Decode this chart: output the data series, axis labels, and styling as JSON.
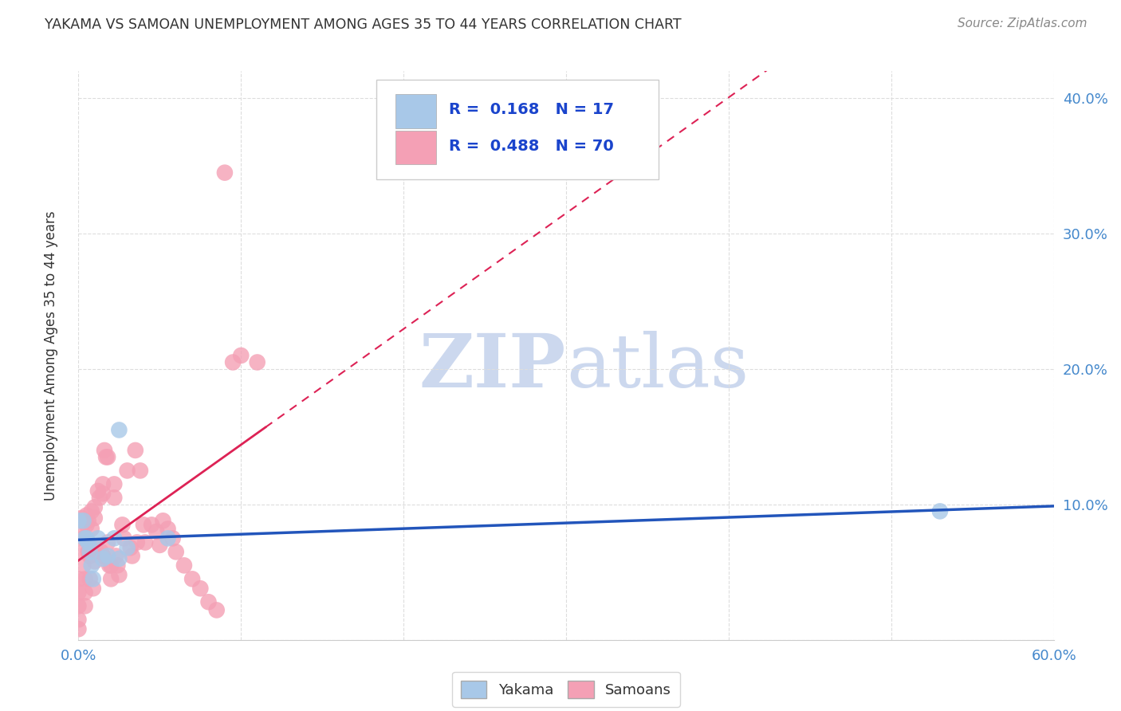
{
  "title": "YAKAMA VS SAMOAN UNEMPLOYMENT AMONG AGES 35 TO 44 YEARS CORRELATION CHART",
  "source_text": "Source: ZipAtlas.com",
  "ylabel": "Unemployment Among Ages 35 to 44 years",
  "xlim": [
    0.0,
    0.6
  ],
  "ylim": [
    0.0,
    0.42
  ],
  "x_ticks": [
    0.0,
    0.1,
    0.2,
    0.3,
    0.4,
    0.5,
    0.6
  ],
  "x_tick_labels": [
    "0.0%",
    "",
    "",
    "",
    "",
    "",
    "60.0%"
  ],
  "y_ticks": [
    0.0,
    0.1,
    0.2,
    0.3,
    0.4
  ],
  "right_y_tick_labels": [
    "",
    "10.0%",
    "20.0%",
    "30.0%",
    "40.0%"
  ],
  "yakama_color": "#a8c8e8",
  "samoans_color": "#f4a0b5",
  "yakama_line_color": "#2255bb",
  "samoans_line_color": "#dd2255",
  "watermark_color": "#ccd8ee",
  "background_color": "#ffffff",
  "grid_color": "#dddddd",
  "tick_color": "#4488cc",
  "title_color": "#333333",
  "yakama_x": [
    0.0,
    0.003,
    0.004,
    0.005,
    0.006,
    0.007,
    0.008,
    0.009,
    0.012,
    0.015,
    0.018,
    0.022,
    0.025,
    0.03,
    0.055,
    0.53,
    0.025
  ],
  "yakama_y": [
    0.088,
    0.088,
    0.075,
    0.075,
    0.072,
    0.065,
    0.055,
    0.045,
    0.075,
    0.06,
    0.062,
    0.075,
    0.06,
    0.068,
    0.075,
    0.095,
    0.155
  ],
  "samoans_x": [
    0.0,
    0.0,
    0.0,
    0.0,
    0.0,
    0.002,
    0.002,
    0.003,
    0.003,
    0.003,
    0.004,
    0.004,
    0.004,
    0.005,
    0.005,
    0.006,
    0.006,
    0.007,
    0.007,
    0.008,
    0.008,
    0.009,
    0.01,
    0.01,
    0.01,
    0.01,
    0.012,
    0.013,
    0.014,
    0.015,
    0.015,
    0.015,
    0.016,
    0.017,
    0.018,
    0.018,
    0.019,
    0.02,
    0.02,
    0.022,
    0.022,
    0.023,
    0.024,
    0.025,
    0.027,
    0.028,
    0.03,
    0.032,
    0.033,
    0.035,
    0.036,
    0.038,
    0.04,
    0.041,
    0.045,
    0.048,
    0.05,
    0.052,
    0.055,
    0.058,
    0.06,
    0.065,
    0.07,
    0.075,
    0.08,
    0.085,
    0.09,
    0.095,
    0.1,
    0.11
  ],
  "samoans_y": [
    0.045,
    0.035,
    0.025,
    0.015,
    0.008,
    0.09,
    0.08,
    0.075,
    0.065,
    0.055,
    0.045,
    0.035,
    0.025,
    0.092,
    0.085,
    0.088,
    0.065,
    0.062,
    0.045,
    0.095,
    0.082,
    0.038,
    0.098,
    0.09,
    0.068,
    0.058,
    0.11,
    0.105,
    0.065,
    0.115,
    0.108,
    0.062,
    0.14,
    0.135,
    0.135,
    0.072,
    0.055,
    0.045,
    0.055,
    0.115,
    0.105,
    0.062,
    0.055,
    0.048,
    0.085,
    0.075,
    0.125,
    0.068,
    0.062,
    0.14,
    0.072,
    0.125,
    0.085,
    0.072,
    0.085,
    0.08,
    0.07,
    0.088,
    0.082,
    0.075,
    0.065,
    0.055,
    0.045,
    0.038,
    0.028,
    0.022,
    0.345,
    0.205,
    0.21,
    0.205
  ]
}
